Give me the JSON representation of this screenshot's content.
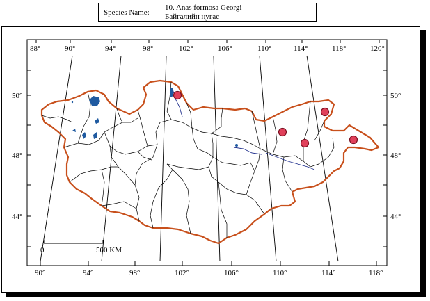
{
  "species": {
    "label": "Species Name:",
    "latin_name": "10. Anas formosa Georgi",
    "local_name": "Байгалийн нугас"
  },
  "graticule": {
    "top_lon_labels": [
      "88°",
      "90°",
      "94°",
      "98°",
      "102°",
      "106°",
      "110°",
      "114°",
      "118°",
      "120°"
    ],
    "bottom_lon_labels": [
      "90°",
      "94°",
      "98°",
      "102°",
      "106°",
      "110°",
      "114°",
      "118°"
    ],
    "lat_labels": [
      "50°",
      "48°",
      "44°"
    ]
  },
  "scale_bar": {
    "start_label": "0",
    "end_label": "500 KM"
  },
  "colors": {
    "border": "#c8501c",
    "lakes": "#1f5aa0",
    "marker_fill": "#e0405a",
    "marker_stroke": "#7a0f20"
  },
  "occurrence_count": 5
}
